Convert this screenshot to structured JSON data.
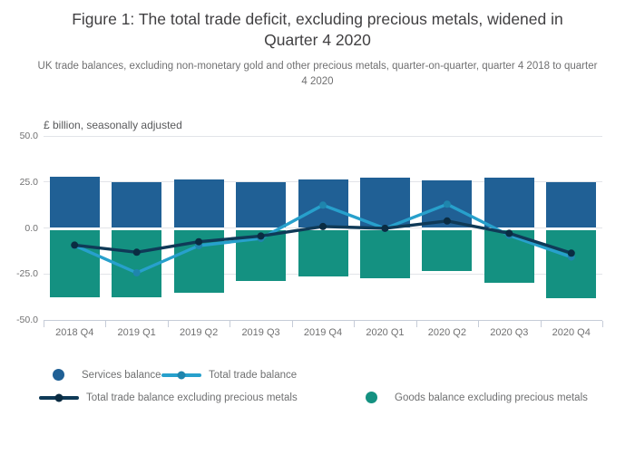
{
  "header": {
    "title": "Figure 1: The total trade deficit, excluding precious metals, widened in Quarter 4 2020",
    "subtitle": "UK trade balances, excluding non-monetary gold and other precious metals, quarter-on-quarter, quarter 4 2018 to quarter 4 2020"
  },
  "chart_data": {
    "type": "bar",
    "subtype": "stacked-bars-with-lines",
    "unit_label": "£ billion, seasonally adjusted",
    "categories": [
      "2018 Q4",
      "2019 Q1",
      "2019 Q2",
      "2019 Q3",
      "2019 Q4",
      "2020 Q1",
      "2020 Q2",
      "2020 Q3",
      "2020 Q4"
    ],
    "series": [
      {
        "name": "Services balance",
        "type": "bar",
        "color": "#206095",
        "values": [
          27.6,
          24.8,
          26.5,
          25.1,
          26.6,
          27.3,
          25.9,
          27.4,
          24.7
        ]
      },
      {
        "name": "Goods balance excluding precious metals",
        "type": "bar",
        "color": "#149181",
        "values": [
          -37.7,
          -37.9,
          -35.3,
          -28.9,
          -26.3,
          -27.4,
          -23.2,
          -29.6,
          -38.0
        ]
      },
      {
        "name": "Total trade balance",
        "type": "line",
        "color": "#27a0cc",
        "dot_color": "#1f85ad",
        "values": [
          -9.5,
          -24.4,
          -9.6,
          -5.7,
          12.4,
          -0.3,
          12.9,
          -4.0,
          -15.8
        ]
      },
      {
        "name": "Total trade balance excluding precious metals",
        "type": "line",
        "color": "#0f3a57",
        "dot_color": "#0a2c42",
        "values": [
          -9.3,
          -13.2,
          -7.5,
          -4.4,
          0.8,
          -0.2,
          3.8,
          -2.9,
          -13.7
        ]
      }
    ],
    "ylim": [
      -50,
      50
    ],
    "yticks": [
      50,
      25,
      0,
      -25,
      -50
    ],
    "ytick_labels": [
      "50.0",
      "25.0",
      "0.0",
      "-25.0",
      "-50.0"
    ],
    "grid": true,
    "legend_position": "bottom"
  },
  "legend": {
    "items": [
      {
        "label": "Services balance",
        "marker": "circle",
        "color": "#206095",
        "dot_color": "#206095"
      },
      {
        "label": "Total trade balance",
        "marker": "line",
        "color": "#27a0cc",
        "dot_color": "#1f85ad"
      },
      {
        "label": "Total trade balance excluding precious metals",
        "marker": "line",
        "color": "#0f3a57",
        "dot_color": "#0a2c42"
      },
      {
        "label": "Goods balance excluding precious metals",
        "marker": "circle",
        "color": "#149181",
        "dot_color": "#149181"
      }
    ]
  }
}
